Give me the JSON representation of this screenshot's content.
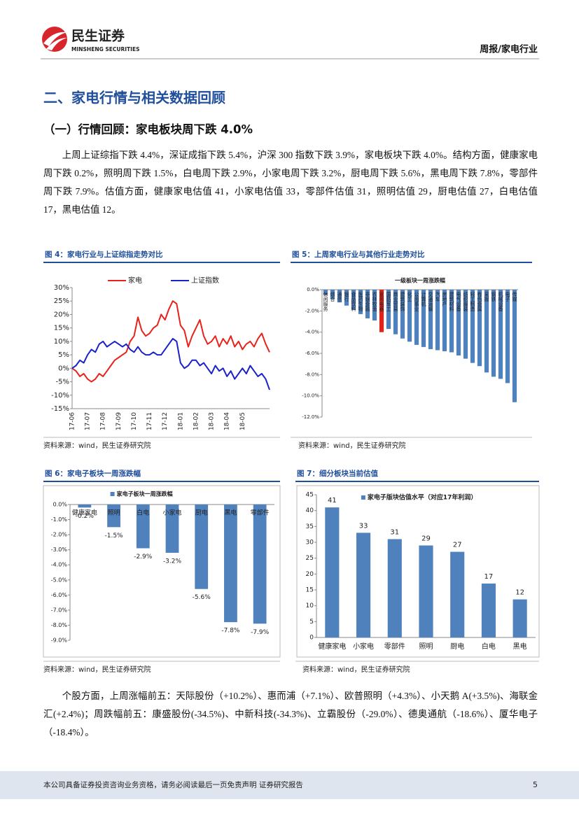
{
  "header": {
    "brand": "民生证券",
    "brand_en": "MINSHENG SECURITIES",
    "report_type": "周报/家电行业"
  },
  "section_title": "二、家电行情与相关数据回顾",
  "subsection_title": "（一）行情回顾：家电板块周下跌 4.0%",
  "paragraphs": [
    "上周上证综指下跌 4.4%，深证成指下跌 5.4%，沪深 300 指数下跌 3.9%，家电板块下跌 4.0%。结构方面，健康家电周下跌 0.2%，照明周下跌 1.5%，白电周下跌 2.9%，小家电周下跌 3.2%，厨电周下跌 5.6%，黑电周下跌 7.8%，零部件周下跌 7.9%。估值方面，健康家电估值 41，小家电估值 33，零部件估值 31，照明估值 29，厨电估值 27，白电估值 17，黑电估值 12。",
    "个股方面，上周涨幅前五：天际股份（+10.2%）、惠而浦（+7.1%）、欧普照明（+4.3%）、小天鹅 A(+3.5%)、海联金汇(+2.4%)；周跌幅前五：康盛股份(-34.5%)、中新科技(-34.3%)、立霸股份（-29.0%）、德奥通航（-18.6%）、厦华电子（-18.4%）。"
  ],
  "figures": [
    {
      "title": "图 4：家电行业与上证综指走势对比",
      "source": "资料来源：wind，民生证券研究院"
    },
    {
      "title": "图 5：上周家电行业与其他行业走势对比",
      "source": "资料来源：wind，民生证券研究院"
    },
    {
      "title": "图 6：家电子板块一周涨跌幅",
      "source": "资料来源：wind，民生证券研究院"
    },
    {
      "title": "图 7：细分板块当前估值",
      "source": "资料来源：wind，民生证券研究院"
    }
  ],
  "chart_data": [
    {
      "type": "line",
      "categories": [
        "17-06",
        null,
        null,
        null,
        "17-07",
        null,
        null,
        null,
        "17-08",
        null,
        null,
        null,
        "17-09",
        null,
        null,
        null,
        "17-10",
        null,
        null,
        null,
        "17-11",
        null,
        null,
        null,
        "17-12",
        null,
        null,
        null,
        "18-01",
        null,
        null,
        null,
        "18-02",
        null,
        null,
        null,
        "18-03",
        null,
        null,
        null,
        "18-04",
        null,
        null,
        null,
        "18-05",
        null,
        null,
        null,
        null,
        null,
        null,
        null
      ],
      "series": [
        {
          "name": "家电",
          "color": "#e8221b",
          "values": [
            0,
            -1,
            -3,
            -2,
            -4,
            -5,
            -4,
            -2,
            -3,
            -1,
            1,
            3,
            4,
            5,
            6,
            10,
            12,
            19,
            14,
            12,
            13,
            15,
            16,
            20,
            18,
            22,
            25,
            24,
            16,
            14,
            8,
            12,
            15,
            18,
            12,
            9,
            10,
            12,
            8,
            11,
            9,
            12,
            8,
            10,
            7,
            9,
            10,
            8,
            11,
            13,
            9,
            6
          ]
        },
        {
          "name": "上证指数",
          "color": "#1b22c8",
          "values": [
            0,
            1,
            3,
            2,
            5,
            7,
            6,
            9,
            10,
            8,
            9,
            10,
            9,
            8,
            9,
            7,
            6,
            8,
            6,
            5,
            5,
            6,
            5,
            5,
            7,
            9,
            11,
            10,
            2,
            0,
            1,
            3,
            3,
            1,
            2,
            0,
            -2,
            1,
            -1,
            0,
            -3,
            -1,
            -4,
            -2,
            0,
            -2,
            1,
            -1,
            -3,
            -2,
            -4,
            -8
          ]
        }
      ],
      "ylim": [
        -15,
        30
      ],
      "yticks": [
        {
          "value": -15,
          "label": "-15%"
        },
        {
          "value": -10,
          "label": "-10%"
        },
        {
          "value": -5,
          "label": "-5%"
        },
        {
          "value": 0,
          "label": "0%"
        },
        {
          "value": 5,
          "label": "5%"
        },
        {
          "value": 10,
          "label": "10%"
        },
        {
          "value": 15,
          "label": "15%"
        },
        {
          "value": 20,
          "label": "20%"
        },
        {
          "value": 25,
          "label": "25%"
        },
        {
          "value": 30,
          "label": "30%"
        }
      ],
      "legend": "top",
      "grid": false
    },
    {
      "type": "bar",
      "title": "一级板块一周涨跌幅",
      "categories": [
        "休闲服务",
        "综合",
        "通信",
        "银行",
        "食品饮料",
        "医药生物",
        "非银金融",
        "农林牧渔",
        "家用电器",
        "国防军工",
        "商业贸易",
        "建筑装饰",
        "化工",
        "公用事业",
        "计算机",
        "交通运输",
        "汽车",
        "房地产",
        "建筑材料",
        "电气设备",
        "纺织服装",
        "轻工制造",
        "有色金属",
        "采掘",
        "钢铁",
        "机械设备",
        "电子",
        "传媒"
      ],
      "series": [
        {
          "values": [
            -0.5,
            -0.9,
            -1.2,
            -1.5,
            -1.9,
            -2.3,
            -2.7,
            -2.9,
            -4.0,
            -3.7,
            -4.2,
            -4.6,
            -4.9,
            -5.2,
            -5.4,
            -5.6,
            -5.7,
            -5.8,
            -5.9,
            -6.2,
            -6.5,
            -6.9,
            -7.2,
            -7.8,
            -8.2,
            -8.4,
            -8.8,
            -10.6
          ],
          "colors": [
            "#4f81bd",
            "#4f81bd",
            "#4f81bd",
            "#4f81bd",
            "#4f81bd",
            "#4f81bd",
            "#4f81bd",
            "#4f81bd",
            "#e0241b",
            "#4f81bd",
            "#4f81bd",
            "#4f81bd",
            "#4f81bd",
            "#4f81bd",
            "#4f81bd",
            "#4f81bd",
            "#4f81bd",
            "#4f81bd",
            "#4f81bd",
            "#4f81bd",
            "#4f81bd",
            "#4f81bd",
            "#4f81bd",
            "#4f81bd",
            "#4f81bd",
            "#4f81bd",
            "#4f81bd",
            "#4f81bd"
          ]
        }
      ],
      "ylim": [
        -12,
        0
      ],
      "yticks": [
        {
          "value": 0,
          "label": "0.0%"
        },
        {
          "value": -2,
          "label": "-2.0%"
        },
        {
          "value": -4,
          "label": "-4.0%"
        },
        {
          "value": -6,
          "label": "-6.0%"
        },
        {
          "value": -8,
          "label": "-8.0%"
        },
        {
          "value": -10,
          "label": "-10.0%"
        },
        {
          "value": -12,
          "label": "-12.0%"
        }
      ]
    },
    {
      "type": "bar",
      "categories": [
        "健康家电",
        "照明",
        "白电",
        "小家电",
        "厨电",
        "黑电",
        "零部件"
      ],
      "series": [
        {
          "name": "家电子板块一周涨跌幅",
          "color": "#4f81bd",
          "values": [
            -0.2,
            -1.5,
            -2.9,
            -3.2,
            -5.6,
            -7.8,
            -7.9
          ],
          "value_labels": [
            "-0.2%",
            "-1.5%",
            "-2.9%",
            "-3.2%",
            "-5.6%",
            "-7.8%",
            "-7.9%"
          ]
        }
      ],
      "ylim": [
        -9,
        0
      ],
      "yticks": [
        {
          "value": 0,
          "label": "0.0%"
        },
        {
          "value": -1,
          "label": "-1.0%"
        },
        {
          "value": -2,
          "label": "-2.0%"
        },
        {
          "value": -3,
          "label": "-3.0%"
        },
        {
          "value": -4,
          "label": "-4.0%"
        },
        {
          "value": -5,
          "label": "-5.0%"
        },
        {
          "value": -6,
          "label": "-6.0%"
        },
        {
          "value": -7,
          "label": "-7.0%"
        },
        {
          "value": -8,
          "label": "-8.0%"
        },
        {
          "value": -9,
          "label": "-9.0%"
        }
      ],
      "legend": "top"
    },
    {
      "type": "bar",
      "categories": [
        "健康家电",
        "小家电",
        "零部件",
        "照明",
        "厨电",
        "白电",
        "黑电"
      ],
      "series": [
        {
          "name": "家电子版块估值水平（对应17年利润）",
          "color": "#4f81bd",
          "values": [
            41,
            33,
            31,
            29,
            27,
            17,
            12
          ]
        }
      ],
      "ylim": [
        0,
        45
      ],
      "yticks": [
        0,
        5,
        10,
        15,
        20,
        25,
        30,
        35,
        40,
        45
      ],
      "data_labels": true,
      "legend": "top"
    }
  ],
  "footer": {
    "disclaimer": "本公司具备证券投资咨询业务资格，请务必阅读最后一页免责声明 证券研究报告",
    "page": 5
  }
}
